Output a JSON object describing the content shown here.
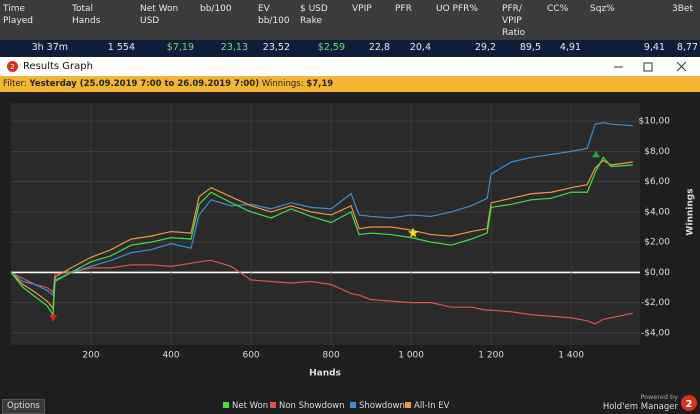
{
  "stats_table": {
    "headers": [
      "Time Played",
      "Total Hands",
      "Net Won USD",
      "bb/100",
      "EV bb/100",
      "$ USD Rake",
      "VPIP",
      "PFR",
      "UO PFR%",
      "PFR/ VPIP Ratio",
      "CC%",
      "Sqz%",
      "3Bet"
    ],
    "row": [
      "3h 37m",
      "1 554",
      "$7,19",
      "23,13",
      "23,52",
      "$2,59",
      "22,8",
      "20,4",
      "29,2",
      "89,5",
      "4,91",
      "9,41",
      "8,77"
    ]
  },
  "window": {
    "title": "Results Graph",
    "filter": {
      "label": "Filter:",
      "value": "Yesterday (25.09.2019 7:00 to 26.09.2019 7:00)",
      "winnings_label": "Winnings:",
      "winnings": "$7,19"
    }
  },
  "chart_data": {
    "type": "line",
    "x_label": "Hands",
    "y_label": "Winnings",
    "x": [
      0,
      30,
      60,
      90,
      100,
      105,
      110,
      150,
      200,
      250,
      300,
      350,
      400,
      450,
      470,
      500,
      550,
      600,
      650,
      700,
      750,
      800,
      850,
      870,
      900,
      950,
      1000,
      1050,
      1100,
      1150,
      1190,
      1200,
      1250,
      1300,
      1350,
      1400,
      1440,
      1460,
      1480,
      1500,
      1554
    ],
    "series": [
      {
        "name": "Net Won",
        "color": "#3fe03f",
        "values": [
          0,
          -1.0,
          -1.6,
          -2.2,
          -2.6,
          -2.8,
          -0.6,
          0.0,
          0.7,
          1.1,
          1.8,
          2.0,
          2.3,
          2.2,
          4.5,
          5.3,
          4.6,
          4.0,
          3.6,
          4.2,
          3.7,
          3.3,
          4.0,
          2.5,
          2.6,
          2.5,
          2.3,
          2.0,
          1.8,
          2.2,
          2.6,
          4.3,
          4.5,
          4.8,
          4.9,
          5.3,
          5.3,
          6.6,
          7.6,
          7.0,
          7.1
        ]
      },
      {
        "name": "Non Showdown",
        "color": "#d9534f",
        "values": [
          0,
          -0.4,
          -0.8,
          -1.0,
          -1.2,
          -1.3,
          -0.1,
          0.0,
          0.3,
          0.3,
          0.5,
          0.5,
          0.4,
          0.6,
          0.7,
          0.8,
          0.4,
          -0.5,
          -0.6,
          -0.7,
          -0.6,
          -0.8,
          -1.4,
          -1.5,
          -1.8,
          -1.9,
          -2.0,
          -2.0,
          -2.3,
          -2.3,
          -2.5,
          -2.5,
          -2.6,
          -2.8,
          -2.9,
          -3.0,
          -3.2,
          -3.4,
          -3.1,
          -3.0,
          -2.7
        ]
      },
      {
        "name": "Showdown",
        "color": "#3b8fd6",
        "values": [
          0,
          -0.6,
          -0.8,
          -1.2,
          -1.4,
          -1.5,
          -0.5,
          0.0,
          0.4,
          0.8,
          1.3,
          1.5,
          1.9,
          1.6,
          3.8,
          4.8,
          4.4,
          4.5,
          4.2,
          4.6,
          4.3,
          4.2,
          5.2,
          3.8,
          3.7,
          3.6,
          3.8,
          3.7,
          4.0,
          4.4,
          4.9,
          6.5,
          7.3,
          7.6,
          7.8,
          8.0,
          8.2,
          9.8,
          9.9,
          9.8,
          9.7
        ]
      },
      {
        "name": "All-In EV",
        "color": "#f0963c",
        "values": [
          0,
          -0.8,
          -1.3,
          -1.9,
          -2.2,
          -2.4,
          -0.3,
          0.3,
          1.0,
          1.5,
          2.2,
          2.4,
          2.7,
          2.6,
          5.0,
          5.6,
          5.0,
          4.4,
          4.0,
          4.4,
          4.0,
          3.8,
          4.4,
          2.9,
          3.0,
          3.0,
          2.8,
          2.5,
          2.4,
          2.7,
          2.9,
          4.6,
          4.9,
          5.2,
          5.3,
          5.6,
          5.8,
          6.9,
          7.4,
          7.1,
          7.3
        ]
      }
    ],
    "markers": [
      {
        "x": 105,
        "y": -3.0,
        "shape": "triangle-down",
        "color": "#e02020"
      },
      {
        "x": 1005,
        "y": 2.6,
        "shape": "star",
        "color": "#ffe020"
      },
      {
        "x": 1462,
        "y": 7.8,
        "shape": "triangle-up",
        "color": "#20a040"
      }
    ],
    "xlim": [
      0,
      1572
    ],
    "ylim": [
      -4.8,
      11.2
    ],
    "xticks": [
      200,
      400,
      600,
      800,
      {
        "value": 1000,
        "label": "1 000"
      },
      {
        "value": 1200,
        "label": "1 200"
      },
      {
        "value": 1400,
        "label": "1 400"
      }
    ],
    "yticks": [
      {
        "value": -4,
        "label": "-$4,00"
      },
      {
        "value": -2,
        "label": "-$2,00"
      },
      {
        "value": 0,
        "label": "$0,00"
      },
      {
        "value": 2,
        "label": "$2,00"
      },
      {
        "value": 4,
        "label": "$4,00"
      },
      {
        "value": 6,
        "label": "$6,00"
      },
      {
        "value": 8,
        "label": "$8,00"
      },
      {
        "value": 10,
        "label": "$10,00"
      }
    ],
    "grid": true
  },
  "footer": {
    "options": "Options",
    "powered_by": "Powered by",
    "brand": "Hold'em Manager"
  }
}
